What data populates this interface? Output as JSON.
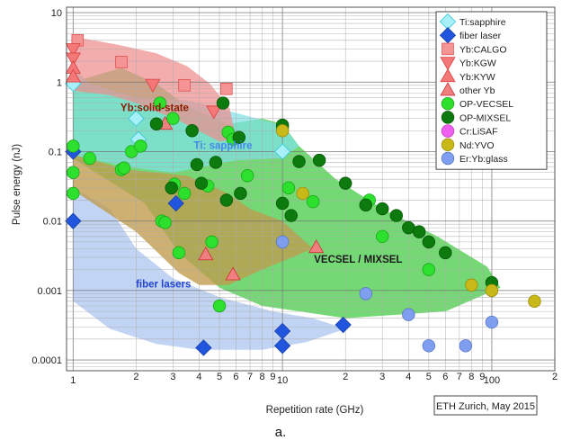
{
  "chart_data": {
    "type": "scatter",
    "xlabel": "Repetition rate (GHz)",
    "ylabel": "Pulse energy (nJ)",
    "xscale": "log",
    "yscale": "log",
    "xlim": [
      0.93,
      200
    ],
    "ylim": [
      7e-05,
      12
    ],
    "grid": true,
    "legend_position": "top-right",
    "x_tick_labels": [
      {
        "v": 1,
        "t": "1"
      },
      {
        "v": 2,
        "t": "2"
      },
      {
        "v": 3,
        "t": "3"
      },
      {
        "v": 4,
        "t": "4"
      },
      {
        "v": 5,
        "t": "5"
      },
      {
        "v": 6,
        "t": "6"
      },
      {
        "v": 7,
        "t": "7"
      },
      {
        "v": 8,
        "t": "8"
      },
      {
        "v": 9,
        "t": "9"
      },
      {
        "v": 10,
        "t": "10"
      },
      {
        "v": 20,
        "t": "2"
      },
      {
        "v": 30,
        "t": "3"
      },
      {
        "v": 40,
        "t": "4"
      },
      {
        "v": 50,
        "t": "5"
      },
      {
        "v": 60,
        "t": "6"
      },
      {
        "v": 70,
        "t": "7"
      },
      {
        "v": 80,
        "t": "8"
      },
      {
        "v": 90,
        "t": "9"
      },
      {
        "v": 100,
        "t": "100"
      },
      {
        "v": 200,
        "t": "2"
      }
    ],
    "y_tick_labels": [
      {
        "v": 10,
        "t": "10"
      },
      {
        "v": 1,
        "t": "1"
      },
      {
        "v": 0.1,
        "t": "0.1"
      },
      {
        "v": 0.01,
        "t": "0.01"
      },
      {
        "v": 0.001,
        "t": "0.001"
      },
      {
        "v": 0.0001,
        "t": "0.0001"
      }
    ],
    "regions": [
      {
        "label": "VECSEL / MIXSEL",
        "color": "#3ecb3e",
        "label_color": "#1a1a1a",
        "label_at": [
          23,
          0.0025
        ],
        "polygon": [
          [
            1,
            0.12
          ],
          [
            1,
            0.08
          ],
          [
            2.2,
            0.018
          ],
          [
            3.2,
            0.0035
          ],
          [
            5,
            0.0011
          ],
          [
            8,
            0.0006
          ],
          [
            20,
            0.0004
          ],
          [
            60,
            0.0005
          ],
          [
            110,
            0.0011
          ],
          [
            95,
            0.0022
          ],
          [
            55,
            0.006
          ],
          [
            30,
            0.015
          ],
          [
            18,
            0.04
          ],
          [
            12,
            0.12
          ],
          [
            10,
            0.25
          ],
          [
            8,
            0.3
          ],
          [
            5.5,
            0.25
          ],
          [
            3.5,
            0.45
          ],
          [
            2.5,
            0.95
          ],
          [
            1.7,
            1.6
          ],
          [
            1,
            1
          ]
        ]
      },
      {
        "label": "Ti: sapphire",
        "color": "#7fe0e8",
        "label_color": "#4488ee",
        "label_at": [
          5.2,
          0.11
        ],
        "polygon": [
          [
            1,
            1.6
          ],
          [
            1.2,
            0.95
          ],
          [
            2,
            0.6
          ],
          [
            3.5,
            0.55
          ],
          [
            6,
            0.36
          ],
          [
            10,
            0.24
          ],
          [
            12,
            0.12
          ],
          [
            10,
            0.08
          ],
          [
            6,
            0.075
          ],
          [
            3,
            0.05
          ],
          [
            1.8,
            0.06
          ],
          [
            1,
            0.09
          ]
        ]
      },
      {
        "label": "fiber lasers",
        "color": "#a9c4ef",
        "label_color": "#2244cc",
        "label_at": [
          2.7,
          0.0011
        ],
        "polygon": [
          [
            1,
            0.03
          ],
          [
            1,
            0.0007
          ],
          [
            1.5,
            0.00028
          ],
          [
            2.5,
            0.00017
          ],
          [
            4,
            0.00014
          ],
          [
            8,
            0.00014
          ],
          [
            13,
            0.00018
          ],
          [
            20,
            0.00028
          ],
          [
            14,
            0.0004
          ],
          [
            9,
            0.0005
          ],
          [
            5,
            0.0008
          ],
          [
            3,
            0.0015
          ],
          [
            2,
            0.004
          ],
          [
            1.5,
            0.015
          ]
        ]
      },
      {
        "label": "Yb:solid-state",
        "color": "#ef8d8d",
        "label_color": "#8b1a00",
        "label_at": [
          2.45,
          0.38
        ],
        "polygon": [
          [
            1,
            4.5
          ],
          [
            1.15,
            4.2
          ],
          [
            1.6,
            3.5
          ],
          [
            2.5,
            2.6
          ],
          [
            3.5,
            1.7
          ],
          [
            4.5,
            0.95
          ],
          [
            5.6,
            0.42
          ],
          [
            6,
            0.15
          ],
          [
            5,
            0.14
          ],
          [
            3.2,
            0.28
          ],
          [
            2,
            0.5
          ],
          [
            1.5,
            0.65
          ],
          [
            1,
            0.75
          ]
        ]
      },
      {
        "label": "",
        "color": "#c09a4c",
        "label_color": "#1a1a1a",
        "label_at": [
          1,
          1
        ],
        "polygon": [
          [
            1,
            0.09
          ],
          [
            1.8,
            0.055
          ],
          [
            3.5,
            0.045
          ],
          [
            5.5,
            0.025
          ],
          [
            7,
            0.015
          ],
          [
            10,
            0.01
          ],
          [
            14,
            0.004
          ],
          [
            8,
            0.002
          ],
          [
            5.5,
            0.0012
          ],
          [
            4,
            0.0012
          ],
          [
            3.2,
            0.0018
          ],
          [
            2,
            0.007
          ],
          [
            1,
            0.028
          ]
        ]
      }
    ],
    "series": [
      {
        "name": "Ti:sapphire",
        "marker": "diamond",
        "color": "#a8f0f8",
        "edge": "#30c8d8",
        "x": [
          1,
          2,
          2.05,
          10
        ],
        "y": [
          0.95,
          0.3,
          0.15,
          0.1
        ]
      },
      {
        "name": "fiber laser",
        "marker": "diamond",
        "color": "#2255dd",
        "edge": "#1840a8",
        "x": [
          1,
          1,
          3.1,
          4.2,
          10,
          10,
          19.5
        ],
        "y": [
          0.1,
          0.01,
          0.018,
          0.00015,
          0.00026,
          0.00016,
          0.00032
        ]
      },
      {
        "name": "Yb:CALGO",
        "marker": "square",
        "color": "#f59494",
        "edge": "#e05050",
        "x": [
          1.05,
          1.7,
          3.4,
          5.4
        ],
        "y": [
          4,
          1.95,
          0.9,
          0.8
        ]
      },
      {
        "name": "Yb:KGW",
        "marker": "triangle-down",
        "color": "#f57878",
        "edge": "#d84040",
        "x": [
          1,
          1,
          2.4,
          4.7
        ],
        "y": [
          3,
          2.2,
          0.92,
          0.38
        ]
      },
      {
        "name": "Yb:KYW",
        "marker": "triangle-up",
        "color": "#f57878",
        "edge": "#d84040",
        "x": [
          1,
          1
        ],
        "y": [
          1.6,
          1.2
        ]
      },
      {
        "name": "other Yb",
        "marker": "triangle-up",
        "color": "#f08080",
        "edge": "#cc3030",
        "x": [
          2.75,
          4.3,
          5.8,
          14.5
        ],
        "y": [
          0.25,
          0.0033,
          0.0017,
          0.0042
        ]
      },
      {
        "name": "OP-VECSEL",
        "marker": "circle",
        "color": "#2ee02e",
        "edge": "#1aa81a",
        "x": [
          1,
          1,
          1,
          1.2,
          1.7,
          1.75,
          1.9,
          2.1,
          2.6,
          2.65,
          2.75,
          3.0,
          3.05,
          3.2,
          3.4,
          4.4,
          4.6,
          5.0,
          5.5,
          5.8,
          6.8,
          10,
          10.7,
          14,
          26,
          30,
          50
        ],
        "y": [
          0.12,
          0.05,
          0.025,
          0.08,
          0.055,
          0.058,
          0.1,
          0.12,
          0.5,
          0.01,
          0.0095,
          0.3,
          0.034,
          0.0035,
          0.025,
          0.032,
          0.005,
          0.0006,
          0.19,
          0.15,
          0.045,
          0.22,
          0.03,
          0.019,
          0.02,
          0.006,
          0.002
        ]
      },
      {
        "name": "OP-MIXSEL",
        "marker": "circle",
        "color": "#0d7a0d",
        "edge": "#075807",
        "x": [
          2.5,
          3.7,
          3.9,
          4.1,
          4.8,
          5.2,
          5.4,
          6.2,
          6.3,
          10,
          10,
          11,
          12,
          15,
          20,
          25,
          30,
          35,
          40,
          45,
          50,
          60,
          100,
          2.95
        ],
        "y": [
          0.25,
          0.2,
          0.065,
          0.035,
          0.07,
          0.5,
          0.02,
          0.16,
          0.025,
          0.24,
          0.018,
          0.012,
          0.072,
          0.075,
          0.035,
          0.017,
          0.015,
          0.012,
          0.008,
          0.007,
          0.005,
          0.0035,
          0.0013,
          0.03
        ]
      },
      {
        "name": "Cr:LiSAF",
        "marker": "circle",
        "color": "#f060f0",
        "edge": "#c040c0",
        "x": [],
        "y": []
      },
      {
        "name": "Nd:YVO",
        "marker": "circle",
        "color": "#c8b818",
        "edge": "#9a8c10",
        "x": [
          10,
          12.5,
          80,
          100,
          160
        ],
        "y": [
          0.2,
          0.025,
          0.0012,
          0.001,
          0.0007
        ]
      },
      {
        "name": "Er:Yb:glass",
        "marker": "circle",
        "color": "#7f9ef0",
        "edge": "#5a78c8",
        "x": [
          10,
          25,
          40,
          50,
          75,
          100
        ],
        "y": [
          0.005,
          0.0009,
          0.00045,
          0.00016,
          0.00016,
          0.00035
        ]
      }
    ],
    "credit": "ETH Zurich, May 2015",
    "panel_label": "a."
  }
}
